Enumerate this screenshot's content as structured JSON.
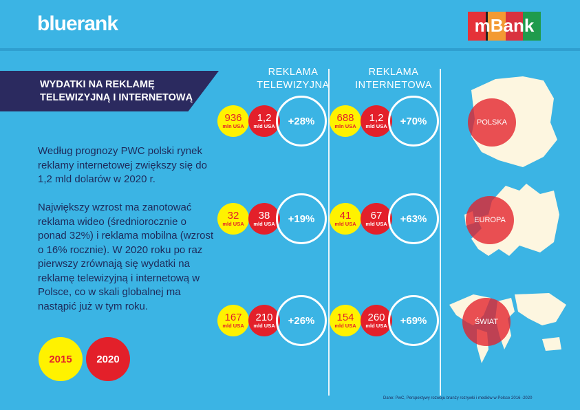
{
  "brand": {
    "logo": "bluerank",
    "partner": "mBank"
  },
  "banner": {
    "title_line1": "WYDATKI NA REKLAMĘ",
    "title_line2": "TELEWIZYJNĄ I INTERNETOWĄ"
  },
  "text": {
    "p1": "Według prognozy PWC polski rynek reklamy internetowej zwiększy się do 1,2 mld dolarów w 2020 r.",
    "p2": "Największy wzrost ma zanotować reklama wideo (średniorocznie o ponad 32%) i reklama mobilna (wzrost o 16% rocznie). W 2020 roku po raz pierwszy zrównają się wydatki na reklamę telewizyjną i internetową w Polsce, co w skali globalnej ma nastąpić już w tym roku."
  },
  "columns": {
    "tv_l1": "REKLAMA",
    "tv_l2": "TELEWIZYJNA",
    "net_l1": "REKLAMA",
    "net_l2": "INTERNETOWA"
  },
  "rows": [
    {
      "region": "POLSKA",
      "tv": {
        "v2015": "936",
        "u2015": "mln USA",
        "v2020": "1,2",
        "u2020": "mld USA",
        "growth": "+28%"
      },
      "net": {
        "v2015": "688",
        "u2015": "mln USA",
        "v2020": "1,2",
        "u2020": "mld USA",
        "growth": "+70%"
      }
    },
    {
      "region": "EUROPA",
      "tv": {
        "v2015": "32",
        "u2015": "mld USA",
        "v2020": "38",
        "u2020": "mld USA",
        "growth": "+19%"
      },
      "net": {
        "v2015": "41",
        "u2015": "mld USA",
        "v2020": "67",
        "u2020": "mld USA",
        "growth": "+63%"
      }
    },
    {
      "region": "ŚWIAT",
      "tv": {
        "v2015": "167",
        "u2015": "mld USA",
        "v2020": "210",
        "u2020": "mld USA",
        "growth": "+26%"
      },
      "net": {
        "v2015": "154",
        "u2015": "mld USA",
        "v2020": "260",
        "u2020": "mld USA",
        "growth": "+69%"
      }
    }
  ],
  "legend": {
    "y2015": "2015",
    "y2020": "2020"
  },
  "source": "Dane: PwC, Perspektywy rozwoju branży rozrywki i mediów w Polsce 2016 -2020",
  "colors": {
    "yellow": "#fff200",
    "red": "#e3202a",
    "bg": "#3bb4e4",
    "navy": "#2b2a5f"
  }
}
